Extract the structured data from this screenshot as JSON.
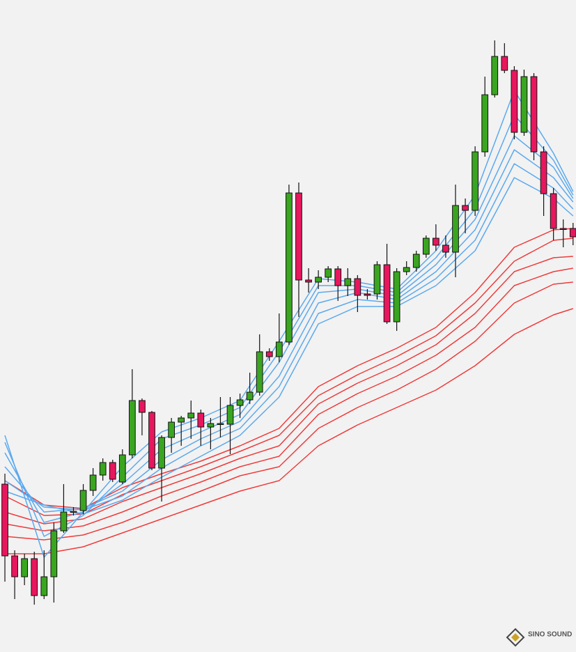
{
  "chart_data": {
    "type": "candlestick",
    "categories": [
      null,
      null,
      null,
      null,
      null,
      null,
      null,
      null,
      null,
      null,
      null,
      null,
      null,
      null,
      null,
      null,
      null,
      null,
      null,
      null,
      null,
      null,
      null,
      null,
      null,
      null,
      null,
      null,
      null,
      null,
      null,
      null,
      null,
      null,
      null,
      null,
      null,
      null,
      null,
      null,
      null,
      null,
      null,
      null,
      null,
      null,
      null,
      null,
      null,
      null,
      null,
      null,
      null,
      null,
      null,
      null,
      null,
      null,
      null
    ],
    "open": [
      241,
      138,
      108,
      134,
      81,
      108,
      174,
      201,
      203,
      232,
      254,
      272,
      244,
      283,
      361,
      344,
      264,
      308,
      330,
      336,
      343,
      323,
      327,
      327,
      354,
      362,
      373,
      431,
      424,
      445,
      659,
      534,
      531,
      538,
      550,
      526,
      536,
      514,
      514,
      556,
      474,
      546,
      552,
      571,
      594,
      584,
      574,
      641,
      634,
      718,
      800,
      855,
      835,
      746,
      826,
      718,
      658,
      608,
      608
    ],
    "high": [
      256,
      146,
      141,
      144,
      146,
      186,
      241,
      208,
      241,
      264,
      278,
      276,
      291,
      406,
      364,
      346,
      311,
      336,
      339,
      361,
      348,
      336,
      366,
      366,
      371,
      401,
      456,
      436,
      486,
      671,
      674,
      551,
      548,
      554,
      554,
      551,
      541,
      521,
      561,
      586,
      551,
      561,
      576,
      598,
      614,
      598,
      671,
      651,
      726,
      826,
      878,
      874,
      841,
      836,
      831,
      726,
      666,
      621,
      616
    ],
    "low": [
      101,
      76,
      96,
      68,
      76,
      71,
      171,
      196,
      198,
      224,
      246,
      244,
      241,
      278,
      311,
      261,
      216,
      286,
      296,
      306,
      296,
      291,
      308,
      284,
      336,
      356,
      368,
      418,
      416,
      441,
      481,
      516,
      521,
      531,
      504,
      511,
      488,
      506,
      506,
      471,
      461,
      541,
      546,
      566,
      576,
      566,
      538,
      601,
      626,
      711,
      796,
      831,
      736,
      741,
      706,
      626,
      591,
      581,
      584
    ],
    "close": [
      138,
      108,
      134,
      81,
      108,
      174,
      201,
      202,
      232,
      254,
      272,
      248,
      283,
      361,
      344,
      264,
      308,
      330,
      336,
      343,
      323,
      328,
      328,
      354,
      362,
      373,
      431,
      424,
      445,
      659,
      534,
      531,
      538,
      550,
      526,
      536,
      512,
      512,
      556,
      474,
      546,
      552,
      571,
      594,
      584,
      574,
      641,
      634,
      718,
      800,
      855,
      835,
      746,
      826,
      718,
      658,
      608,
      607,
      596
    ],
    "up_color": "#3aa520",
    "down_color": "#e8175d",
    "wick_color": "#111111",
    "xlim": [
      -0.5,
      58.3
    ],
    "ylim": [
      0,
      936
    ],
    "line_x": [
      0,
      4,
      8,
      12,
      16,
      20,
      24,
      28,
      32,
      36,
      40,
      44,
      48,
      52,
      56,
      58
    ],
    "lines": [
      {
        "color": "#f03a3a",
        "values": [
          246,
          211,
          206,
          236,
          256,
          274,
          296,
          321,
          381,
          411,
          436,
          466,
          516,
          581,
          606,
          608
        ]
      },
      {
        "color": "#f03a3a",
        "values": [
          224,
          196,
          198,
          226,
          246,
          266,
          288,
          311,
          368,
          398,
          424,
          454,
          501,
          561,
          591,
          594
        ]
      },
      {
        "color": "#f03a3a",
        "values": [
          201,
          184,
          191,
          216,
          236,
          256,
          278,
          296,
          356,
          386,
          411,
          441,
          486,
          546,
          566,
          568
        ]
      },
      {
        "color": "#f03a3a",
        "values": [
          184,
          174,
          181,
          201,
          224,
          244,
          266,
          281,
          341,
          371,
          396,
          426,
          466,
          526,
          546,
          551
        ]
      },
      {
        "color": "#f03a3a",
        "values": [
          166,
          161,
          168,
          186,
          209,
          231,
          253,
          266,
          321,
          351,
          376,
          406,
          446,
          501,
          528,
          531
        ]
      },
      {
        "color": "#f03a3a",
        "values": [
          141,
          141,
          151,
          171,
          191,
          211,
          231,
          246,
          296,
          326,
          351,
          376,
          411,
          456,
          484,
          493
        ]
      },
      {
        "color": "#5aa9ef",
        "values": [
          311,
          136,
          201,
          266,
          316,
          336,
          361,
          446,
          536,
          531,
          521,
          576,
          656,
          806,
          716,
          661
        ]
      },
      {
        "color": "#5aa9ef",
        "values": [
          301,
          166,
          196,
          251,
          306,
          326,
          351,
          431,
          526,
          526,
          516,
          566,
          636,
          771,
          706,
          656
        ]
      },
      {
        "color": "#5aa9ef",
        "values": [
          286,
          186,
          201,
          241,
          291,
          316,
          341,
          416,
          516,
          521,
          511,
          556,
          621,
          741,
          696,
          651
        ]
      },
      {
        "color": "#5aa9ef",
        "values": [
          266,
          201,
          206,
          231,
          276,
          306,
          331,
          396,
          501,
          516,
          506,
          546,
          606,
          721,
          681,
          646
        ]
      },
      {
        "color": "#5aa9ef",
        "values": [
          246,
          208,
          204,
          224,
          264,
          296,
          321,
          381,
          486,
          506,
          501,
          536,
          591,
          701,
          666,
          636
        ]
      },
      {
        "color": "#5aa9ef",
        "values": [
          231,
          211,
          198,
          218,
          251,
          281,
          311,
          366,
          471,
          496,
          496,
          526,
          576,
          681,
          651,
          626
        ]
      }
    ]
  },
  "watermark": {
    "text": "SINO SOUND"
  }
}
